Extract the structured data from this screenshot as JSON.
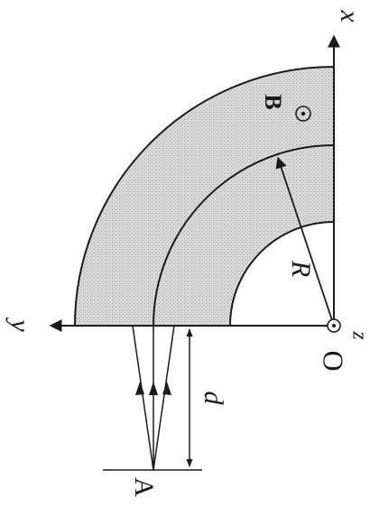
{
  "labels": {
    "x_axis": "x",
    "y_axis": "y",
    "z_axis": "z",
    "origin": "O",
    "radius": "R",
    "distance": "d",
    "source_point": "A",
    "field": "B"
  },
  "colors": {
    "ink": "#1a1a1a",
    "region_fill": "#d4d4d4",
    "background": "#ffffff"
  },
  "icons": {
    "field_direction": "dot-in-circle-out-of-page",
    "axis_arrows": "filled-triangle-arrowheads"
  }
}
